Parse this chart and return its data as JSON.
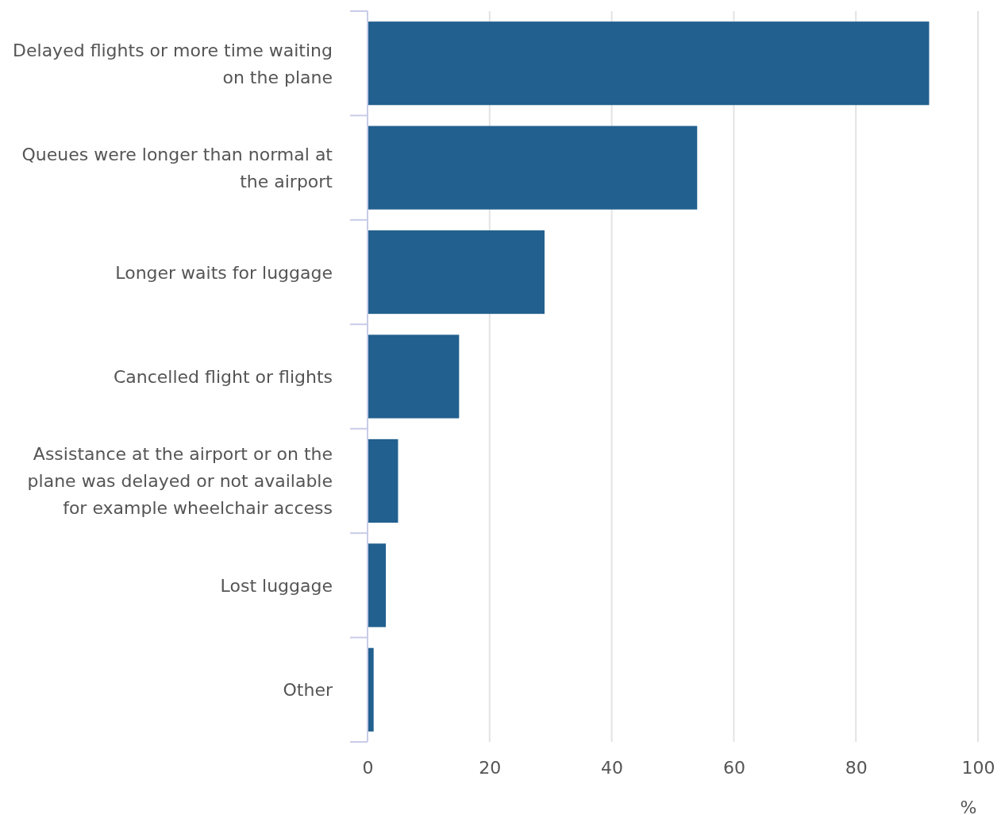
{
  "chart_data": {
    "type": "bar",
    "orientation": "horizontal",
    "xlabel": "%",
    "categories": [
      "Delayed flights or more time waiting on the plane",
      "Queues were longer than normal at the airport",
      "Longer waits for luggage",
      "Cancelled flight or flights",
      "Assistance at the airport or on the plane was delayed or not available for example wheelchair access",
      "Lost luggage",
      "Other"
    ],
    "values": [
      92,
      54,
      29,
      15,
      5,
      3,
      1
    ],
    "color": "#22608f",
    "xlim": [
      0,
      100
    ],
    "xticks": [
      0,
      20,
      40,
      60,
      80,
      100
    ],
    "grid": "x"
  }
}
